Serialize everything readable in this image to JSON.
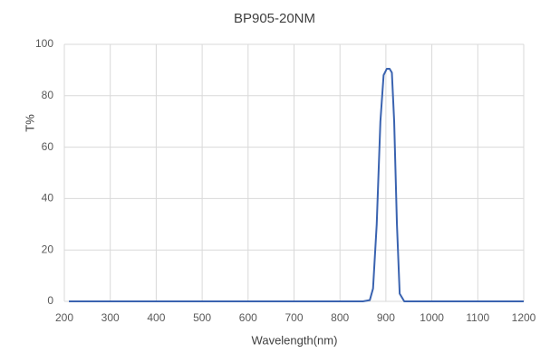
{
  "chart_data": {
    "type": "line",
    "title": "BP905-20NM",
    "x_label": "Wavelength(nm)",
    "y_label": "T%",
    "x": [
      210,
      850,
      865,
      872,
      880,
      888,
      895,
      902,
      908,
      913,
      918,
      924,
      930,
      940,
      1200
    ],
    "series": [
      {
        "name": "T%",
        "color": "#3a63b0",
        "values": [
          0,
          0,
          0.5,
          5,
          30,
          70,
          88,
          90.5,
          90.5,
          89,
          70,
          30,
          3,
          0,
          0
        ]
      }
    ],
    "xlim": [
      200,
      1200
    ],
    "xticks": [
      200,
      300,
      400,
      500,
      600,
      700,
      800,
      900,
      1000,
      1100,
      1200
    ],
    "ylim": [
      0,
      100
    ],
    "yticks": [
      0,
      20,
      40,
      60,
      80,
      100
    ],
    "grid": true
  }
}
